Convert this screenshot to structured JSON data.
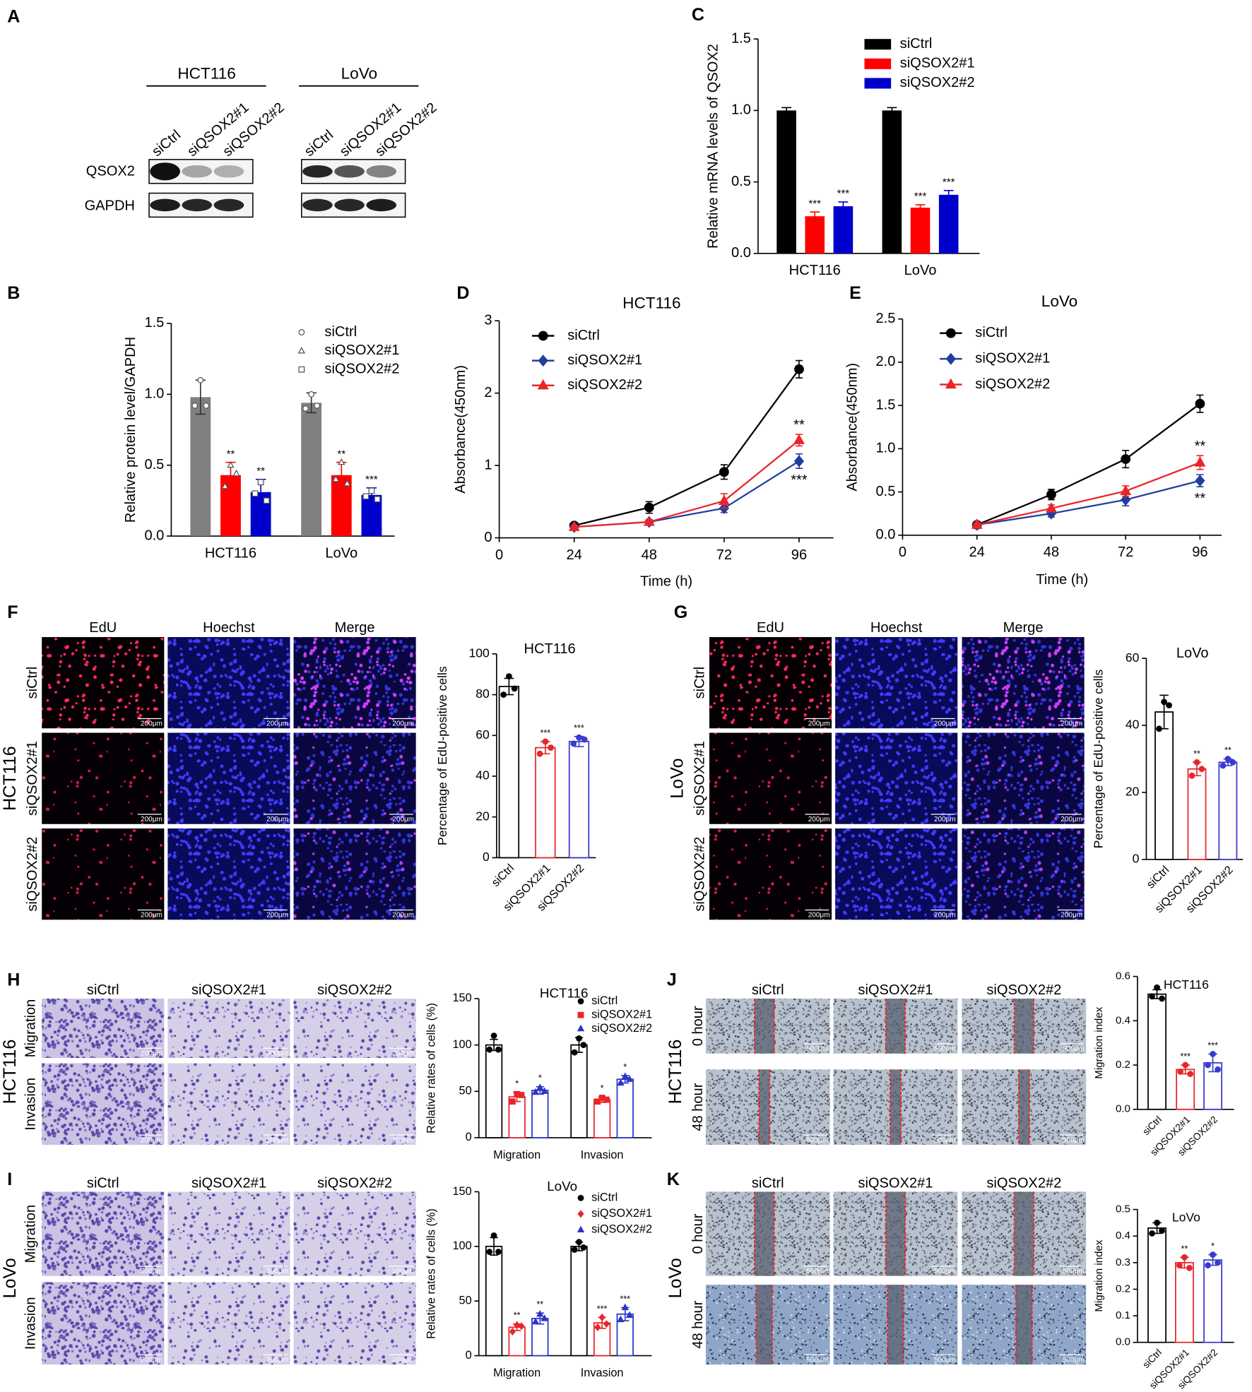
{
  "panel_labels": [
    "A",
    "B",
    "C",
    "D",
    "E",
    "F",
    "G",
    "H",
    "I",
    "J",
    "K"
  ],
  "blot": {
    "groups": [
      {
        "name": "HCT116",
        "lanes": [
          "siCtrl",
          "siQSOX2#1",
          "siQSOX2#2"
        ]
      },
      {
        "name": "LoVo",
        "lanes": [
          "siCtrl",
          "siQSOX2#1",
          "siQSOX2#2"
        ]
      }
    ],
    "proteins": [
      "QSOX2",
      "GAPDH"
    ]
  },
  "image_panels": [
    {
      "columns": [
        "EdU",
        "Hoechst",
        "Merge"
      ],
      "rows": [
        "siCtrl",
        "siQSOX2#1",
        "siQSOX2#2"
      ],
      "group": "HCT116",
      "scale": "200μm"
    },
    {
      "columns": [
        "EdU",
        "Hoechst",
        "Merge"
      ],
      "rows": [
        "siCtrl",
        "siQSOX2#1",
        "siQSOX2#2"
      ],
      "group": "LoVo",
      "scale": "200μm"
    },
    {
      "columns": [
        "siCtrl",
        "siQSOX2#1",
        "siQSOX2#2"
      ],
      "rows": [
        "Migration",
        "Invasion"
      ],
      "group": "HCT116",
      "scale": "200μm"
    },
    {
      "columns": [
        "siCtrl",
        "siQSOX2#1",
        "siQSOX2#2"
      ],
      "rows": [
        "Migration",
        "Invasion"
      ],
      "group": "LoVo",
      "scale": "200μm"
    },
    {
      "columns": [
        "siCtrl",
        "siQSOX2#1",
        "siQSOX2#2"
      ],
      "rows": [
        "0 hour",
        "48 hour"
      ],
      "group": "HCT116",
      "scale": "500μm"
    },
    {
      "columns": [
        "siCtrl",
        "siQSOX2#1",
        "siQSOX2#2"
      ],
      "rows": [
        "0 hour",
        "48 hour"
      ],
      "group": "LoVo",
      "scale": "500μm"
    }
  ],
  "chart_data": [
    {
      "type": "bar",
      "categories": [
        "HCT116",
        "LoVo"
      ],
      "ylabel": "Relative protein level/GAPDH",
      "ylim": [
        0,
        1.5
      ],
      "yticks": [
        {
          "value": 0,
          "label": "0.0"
        },
        0.5,
        {
          "value": 1,
          "label": "1.0"
        },
        1.5
      ],
      "bar_style": "filled",
      "point_style": "hollow",
      "legend": "top-right",
      "series": [
        {
          "name": "siCtrl",
          "color": "#808080",
          "marker": "circle",
          "values": [
            0.98,
            0.94
          ],
          "errors": [
            0.12,
            0.07
          ],
          "points": [
            [
              1.1,
              0.92,
              0.92
            ],
            [
              1.0,
              0.9,
              0.92
            ]
          ]
        },
        {
          "name": "siQSOX2#1",
          "color": "#ff0000",
          "marker": "triangle",
          "values": [
            0.43,
            0.43
          ],
          "errors": [
            0.09,
            0.09
          ],
          "points": [
            [
              0.5,
              0.35,
              0.44
            ],
            [
              0.52,
              0.4,
              0.37
            ]
          ],
          "annotations": [
            "**",
            "**"
          ]
        },
        {
          "name": "siQSOX2#2",
          "color": "#0000cc",
          "marker": "square",
          "values": [
            0.31,
            0.29
          ],
          "errors": [
            0.09,
            0.05
          ],
          "points": [
            [
              0.38,
              0.3,
              0.25
            ],
            [
              0.32,
              0.28,
              0.26
            ]
          ],
          "annotations": [
            "**",
            "***"
          ]
        }
      ]
    },
    {
      "type": "bar",
      "categories": [
        "HCT116",
        "LoVo"
      ],
      "ylabel": "Relative mRNA levels of QSOX2",
      "ylim": [
        0,
        1.5
      ],
      "yticks": [
        {
          "value": 0,
          "label": "0.0"
        },
        0.5,
        {
          "value": 1,
          "label": "1.0"
        },
        1.5
      ],
      "bar_style": "filled",
      "legend": "top-right",
      "series": [
        {
          "name": "siCtrl",
          "color": "#000000",
          "values": [
            1.0,
            1.0
          ],
          "errors": [
            0.02,
            0.02
          ]
        },
        {
          "name": "siQSOX2#1",
          "color": "#ff0000",
          "values": [
            0.26,
            0.32
          ],
          "errors": [
            0.03,
            0.02
          ],
          "annotations": [
            "***",
            "***"
          ]
        },
        {
          "name": "siQSOX2#2",
          "color": "#0000cc",
          "values": [
            0.33,
            0.41
          ],
          "errors": [
            0.03,
            0.03
          ],
          "annotations": [
            "***",
            "***"
          ]
        }
      ]
    },
    {
      "type": "line",
      "title": "HCT116",
      "x": [
        24,
        48,
        72,
        96
      ],
      "xlim": [
        0,
        107
      ],
      "xticks": [
        0,
        24,
        48,
        72,
        96
      ],
      "ylim": [
        0,
        3
      ],
      "yticks": [
        0,
        1,
        2,
        3
      ],
      "xlabel": "Time (h)",
      "ylabel": "Absorbance(450nm)",
      "legend": "top-left",
      "series": [
        {
          "name": "siCtrl",
          "color": "#000000",
          "marker": "circle",
          "values": [
            0.17,
            0.42,
            0.91,
            2.33
          ],
          "errors": [
            0.03,
            0.08,
            0.1,
            0.12
          ]
        },
        {
          "name": "siQSOX2#1",
          "color": "#1f3f9e",
          "marker": "diamond",
          "values": [
            0.15,
            0.22,
            0.41,
            1.06
          ],
          "errors": [
            0.02,
            0.03,
            0.06,
            0.1
          ],
          "annotation": "***",
          "annotation_position": "below"
        },
        {
          "name": "siQSOX2#2",
          "color": "#e8262a",
          "marker": "triangle",
          "values": [
            0.15,
            0.22,
            0.51,
            1.35
          ],
          "errors": [
            0.02,
            0.03,
            0.1,
            0.08
          ],
          "annotation": "**",
          "annotation_position": "above"
        }
      ]
    },
    {
      "type": "line",
      "title": "LoVo",
      "x": [
        24,
        48,
        72,
        96
      ],
      "xlim": [
        0,
        103
      ],
      "xticks": [
        0,
        24,
        48,
        72,
        96
      ],
      "ylim": [
        0,
        2.5
      ],
      "yticks": [
        {
          "value": 0,
          "label": "0.0"
        },
        0.5,
        {
          "value": 1,
          "label": "1.0"
        },
        1.5,
        {
          "value": 2,
          "label": "2.0"
        },
        2.5
      ],
      "xlabel": "Time (h)",
      "ylabel": "Absorbance(450nm)",
      "legend": "top-left",
      "series": [
        {
          "name": "siCtrl",
          "color": "#000000",
          "marker": "circle",
          "values": [
            0.12,
            0.47,
            0.88,
            1.52
          ],
          "errors": [
            0.03,
            0.06,
            0.1,
            0.1
          ]
        },
        {
          "name": "siQSOX2#1",
          "color": "#1f3f9e",
          "marker": "diamond",
          "values": [
            0.12,
            0.25,
            0.41,
            0.63
          ],
          "errors": [
            0.02,
            0.04,
            0.07,
            0.07
          ],
          "annotation": "**",
          "annotation_position": "below"
        },
        {
          "name": "siQSOX2#2",
          "color": "#e8262a",
          "marker": "triangle",
          "values": [
            0.12,
            0.31,
            0.51,
            0.84
          ],
          "errors": [
            0.02,
            0.04,
            0.06,
            0.08
          ],
          "annotation": "**",
          "annotation_position": "above"
        }
      ]
    },
    {
      "type": "bar",
      "title": "HCT116",
      "categories": [
        "siCtrl",
        "siQSOX2#1",
        "siQSOX2#2"
      ],
      "values": [
        84,
        54,
        57
      ],
      "errors": [
        4,
        3,
        2.5
      ],
      "points": [
        [
          89,
          80,
          83
        ],
        [
          57,
          51,
          54
        ],
        [
          59,
          56,
          58
        ]
      ],
      "colors": [
        "#000000",
        "#e8262a",
        "#3a3ad0"
      ],
      "annotations": [
        null,
        "***",
        "***"
      ],
      "ylabel": "Percentage of EdU-positive cells",
      "ylim": [
        0,
        100
      ],
      "yticks": [
        0,
        20,
        40,
        60,
        80,
        100
      ],
      "bar_style": "hollow",
      "point_style": "filled"
    },
    {
      "type": "bar",
      "title": "LoVo",
      "categories": [
        "siCtrl",
        "siQSOX2#1",
        "siQSOX2#2"
      ],
      "values": [
        44,
        27,
        29
      ],
      "errors": [
        5,
        2,
        1
      ],
      "points": [
        [
          47,
          39,
          46
        ],
        [
          29,
          25,
          27
        ],
        [
          30,
          28,
          29
        ]
      ],
      "colors": [
        "#000000",
        "#e8262a",
        "#3a3ad0"
      ],
      "annotations": [
        null,
        "**",
        "**"
      ],
      "ylabel": "Percentage of EdU-positive cells",
      "ylim": [
        0,
        60
      ],
      "yticks": [
        0,
        20,
        40,
        60
      ],
      "bar_style": "hollow",
      "point_style": "filled"
    },
    {
      "type": "bar",
      "title": "HCT116",
      "categories": [
        "Migration",
        "Invasion"
      ],
      "ylabel": "Relative rates of cells (%)",
      "ylim": [
        0,
        150
      ],
      "yticks": [
        0,
        50,
        100,
        150
      ],
      "bar_style": "hollow",
      "point_style": "filled",
      "legend": "top-right",
      "series": [
        {
          "name": "siCtrl",
          "color": "#000000",
          "marker": "circle",
          "values": [
            100,
            100
          ],
          "errors": [
            6,
            8
          ],
          "points": [
            [
              110,
              95,
              95
            ],
            [
              107,
              92,
              100
            ]
          ]
        },
        {
          "name": "siQSOX2#1",
          "color": "#e8262a",
          "marker": "square",
          "values": [
            44,
            41
          ],
          "errors": [
            5,
            3
          ],
          "points": [
            [
              47,
              39,
              46
            ],
            [
              43,
              39,
              41
            ]
          ],
          "annotations": [
            "*",
            "*"
          ]
        },
        {
          "name": "siQSOX2#2",
          "color": "#2b35c9",
          "marker": "triangle",
          "values": [
            51,
            63
          ],
          "errors": [
            4,
            4
          ],
          "points": [
            [
              54,
              49,
              50
            ],
            [
              66,
              59,
              63
            ]
          ],
          "annotations": [
            "*",
            "*"
          ]
        }
      ]
    },
    {
      "type": "bar",
      "title": "LoVo",
      "categories": [
        "Migration",
        "Invasion"
      ],
      "ylabel": "Relative rates of cells (%)",
      "ylim": [
        0,
        150
      ],
      "yticks": [
        0,
        50,
        100,
        150
      ],
      "bar_style": "hollow",
      "point_style": "filled",
      "legend": "top-right",
      "series": [
        {
          "name": "siCtrl",
          "color": "#000000",
          "marker": "circle",
          "values": [
            100,
            100
          ],
          "errors": [
            8,
            4
          ],
          "points": [
            [
              110,
              95,
              95
            ],
            [
              104,
              97,
              99
            ]
          ]
        },
        {
          "name": "siQSOX2#1",
          "color": "#e8262a",
          "marker": "diamond",
          "values": [
            26,
            30
          ],
          "errors": [
            3,
            5
          ],
          "points": [
            [
              28,
              22,
              27
            ],
            [
              35,
              26,
              29
            ]
          ],
          "annotations": [
            "**",
            "***"
          ]
        },
        {
          "name": "siQSOX2#2",
          "color": "#2b35c9",
          "marker": "triangle",
          "values": [
            34,
            38
          ],
          "errors": [
            5,
            6
          ],
          "points": [
            [
              38,
              31,
              34
            ],
            [
              44,
              33,
              37
            ]
          ],
          "annotations": [
            "**",
            "***"
          ]
        }
      ]
    },
    {
      "type": "bar",
      "title": "HCT116",
      "categories": [
        "siCtrl",
        "siQSOX2#1",
        "siQSOX2#2"
      ],
      "values": [
        0.52,
        0.18,
        0.21
      ],
      "errors": [
        0.02,
        0.02,
        0.04
      ],
      "points": [
        [
          0.55,
          0.51,
          0.5
        ],
        [
          0.2,
          0.17,
          0.16
        ],
        [
          0.25,
          0.2,
          0.18
        ]
      ],
      "colors": [
        "#000000",
        "#e8262a",
        "#3a3ad0"
      ],
      "annotations": [
        null,
        "***",
        "***"
      ],
      "ylabel": "Migration index",
      "ylim": [
        0,
        0.6
      ],
      "yticks": [
        {
          "value": 0,
          "label": "0.0"
        },
        0.2,
        0.4,
        0.6
      ],
      "bar_style": "hollow",
      "point_style": "filled"
    },
    {
      "type": "bar",
      "title": "LoVo",
      "categories": [
        "siCtrl",
        "siQSOX2#1",
        "siQSOX2#2"
      ],
      "values": [
        0.43,
        0.3,
        0.31
      ],
      "errors": [
        0.02,
        0.02,
        0.02
      ],
      "points": [
        [
          0.45,
          0.41,
          0.42
        ],
        [
          0.32,
          0.29,
          0.28
        ],
        [
          0.33,
          0.29,
          0.3
        ]
      ],
      "colors": [
        "#000000",
        "#e8262a",
        "#3a3ad0"
      ],
      "annotations": [
        null,
        "**",
        "*"
      ],
      "ylabel": "Migration index",
      "ylim": [
        0,
        0.5
      ],
      "yticks": [
        {
          "value": 0,
          "label": "0.0"
        },
        0.1,
        0.2,
        0.3,
        0.4,
        0.5
      ],
      "bar_style": "hollow",
      "point_style": "filled"
    }
  ]
}
